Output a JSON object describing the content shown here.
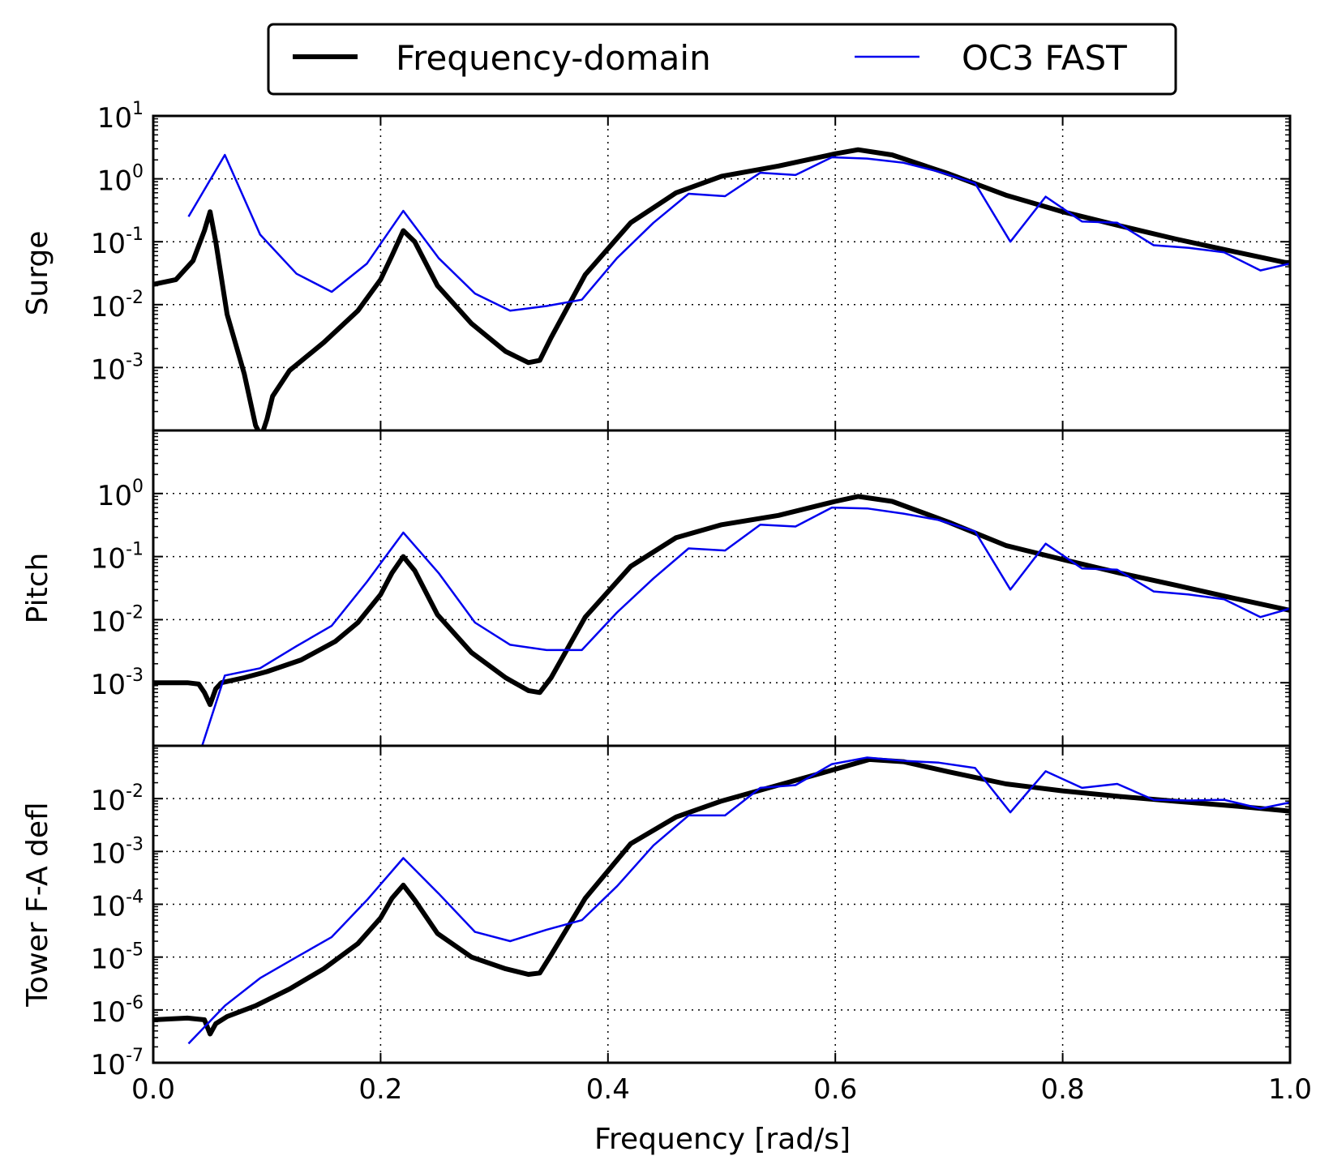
{
  "chart_data": [
    {
      "type": "line",
      "ylabel": "Surge",
      "yscale": "log",
      "ylim_exp": [
        -4,
        1
      ],
      "ytick_exponents": [
        1,
        0,
        -1,
        -2,
        -3
      ],
      "xlim": [
        0.0,
        1.0
      ],
      "grid": true,
      "series": [
        {
          "name": "Frequency-domain",
          "color": "#000000",
          "x": [
            0.0,
            0.02,
            0.035,
            0.045,
            0.05,
            0.055,
            0.065,
            0.08,
            0.09,
            0.095,
            0.1,
            0.105,
            0.12,
            0.15,
            0.18,
            0.2,
            0.21,
            0.22,
            0.23,
            0.25,
            0.28,
            0.31,
            0.33,
            0.34,
            0.35,
            0.38,
            0.42,
            0.46,
            0.5,
            0.55,
            0.6,
            0.62,
            0.65,
            0.7,
            0.75,
            0.8,
            0.85,
            0.9,
            0.95,
            1.0
          ],
          "y": [
            0.021,
            0.025,
            0.05,
            0.15,
            0.3,
            0.1,
            0.007,
            0.0008,
            0.00012,
            8e-05,
            0.00015,
            0.00035,
            0.0009,
            0.0025,
            0.008,
            0.025,
            0.06,
            0.15,
            0.1,
            0.02,
            0.005,
            0.0018,
            0.0012,
            0.0013,
            0.003,
            0.03,
            0.2,
            0.6,
            1.1,
            1.6,
            2.5,
            2.9,
            2.4,
            1.2,
            0.55,
            0.3,
            0.18,
            0.11,
            0.07,
            0.045
          ]
        },
        {
          "name": "OC3 FAST",
          "color": "#0000ee",
          "x": [
            0.031,
            0.063,
            0.094,
            0.126,
            0.157,
            0.188,
            0.22,
            0.251,
            0.283,
            0.314,
            0.346,
            0.377,
            0.408,
            0.44,
            0.471,
            0.503,
            0.534,
            0.565,
            0.597,
            0.628,
            0.66,
            0.691,
            0.723,
            0.754,
            0.785,
            0.817,
            0.848,
            0.88,
            0.911,
            0.942,
            0.974,
            1.0
          ],
          "y": [
            0.25,
            2.4,
            0.13,
            0.031,
            0.016,
            0.045,
            0.31,
            0.055,
            0.015,
            0.008,
            0.0095,
            0.012,
            0.055,
            0.2,
            0.58,
            0.53,
            1.25,
            1.15,
            2.2,
            2.1,
            1.8,
            1.3,
            0.85,
            0.1,
            0.52,
            0.21,
            0.2,
            0.088,
            0.08,
            0.068,
            0.035,
            0.045
          ]
        }
      ]
    },
    {
      "type": "line",
      "ylabel": "Pitch",
      "yscale": "log",
      "ylim_exp": [
        -4,
        1
      ],
      "ytick_exponents": [
        0,
        -1,
        -2,
        -3
      ],
      "xlim": [
        0.0,
        1.0
      ],
      "grid": true,
      "series": [
        {
          "name": "Frequency-domain",
          "color": "#000000",
          "x": [
            0.0,
            0.03,
            0.04,
            0.045,
            0.05,
            0.055,
            0.06,
            0.08,
            0.1,
            0.13,
            0.16,
            0.18,
            0.2,
            0.21,
            0.22,
            0.23,
            0.25,
            0.28,
            0.31,
            0.33,
            0.34,
            0.35,
            0.38,
            0.42,
            0.46,
            0.5,
            0.55,
            0.6,
            0.62,
            0.65,
            0.7,
            0.75,
            0.8,
            0.85,
            0.9,
            0.95,
            1.0
          ],
          "y": [
            0.001,
            0.001,
            0.00095,
            0.0007,
            0.00045,
            0.0008,
            0.001,
            0.0012,
            0.0015,
            0.0023,
            0.0045,
            0.009,
            0.025,
            0.055,
            0.1,
            0.06,
            0.012,
            0.003,
            0.0012,
            0.00075,
            0.0007,
            0.0012,
            0.011,
            0.07,
            0.2,
            0.32,
            0.45,
            0.75,
            0.9,
            0.75,
            0.35,
            0.15,
            0.09,
            0.055,
            0.035,
            0.022,
            0.014
          ]
        },
        {
          "name": "OC3 FAST",
          "color": "#0000ee",
          "x": [
            0.031,
            0.043,
            0.063,
            0.094,
            0.126,
            0.157,
            0.188,
            0.22,
            0.251,
            0.283,
            0.314,
            0.346,
            0.377,
            0.408,
            0.44,
            0.471,
            0.503,
            0.534,
            0.565,
            0.597,
            0.628,
            0.66,
            0.691,
            0.723,
            0.754,
            0.785,
            0.817,
            0.848,
            0.88,
            0.911,
            0.942,
            0.974,
            1.0
          ],
          "y": [
            1e-05,
            0.0001,
            0.0013,
            0.0017,
            0.0038,
            0.008,
            0.04,
            0.24,
            0.055,
            0.009,
            0.004,
            0.0033,
            0.0033,
            0.013,
            0.045,
            0.135,
            0.125,
            0.32,
            0.3,
            0.6,
            0.58,
            0.48,
            0.38,
            0.25,
            0.03,
            0.16,
            0.065,
            0.062,
            0.028,
            0.025,
            0.021,
            0.011,
            0.015
          ]
        }
      ]
    },
    {
      "type": "line",
      "ylabel": "Tower F-A defl",
      "yscale": "log",
      "ylim_exp": [
        -7,
        -1
      ],
      "ytick_exponents": [
        -2,
        -3,
        -4,
        -5,
        -6,
        -7
      ],
      "xlim": [
        0.0,
        1.0
      ],
      "xlabel": "Frequency [rad/s]",
      "xticks": [
        "0.0",
        "0.2",
        "0.4",
        "0.6",
        "0.8",
        "1.0"
      ],
      "grid": true,
      "series": [
        {
          "name": "Frequency-domain",
          "color": "#000000",
          "x": [
            0.0,
            0.03,
            0.045,
            0.05,
            0.055,
            0.065,
            0.09,
            0.12,
            0.15,
            0.18,
            0.2,
            0.21,
            0.22,
            0.23,
            0.25,
            0.28,
            0.31,
            0.33,
            0.34,
            0.35,
            0.38,
            0.42,
            0.46,
            0.5,
            0.55,
            0.6,
            0.63,
            0.66,
            0.7,
            0.75,
            0.8,
            0.85,
            0.9,
            0.95,
            1.0
          ],
          "y": [
            6.5e-07,
            7e-07,
            6.5e-07,
            3.5e-07,
            5.5e-07,
            7.5e-07,
            1.2e-06,
            2.5e-06,
            6e-06,
            1.8e-05,
            5.5e-05,
            0.00013,
            0.00023,
            0.00012,
            2.8e-05,
            1e-05,
            6e-06,
            4.7e-06,
            5e-06,
            1.1e-05,
            0.00013,
            0.0014,
            0.0045,
            0.009,
            0.018,
            0.036,
            0.055,
            0.05,
            0.032,
            0.019,
            0.014,
            0.011,
            0.0089,
            0.0073,
            0.0058
          ]
        },
        {
          "name": "OC3 FAST",
          "color": "#0000ee",
          "x": [
            0.031,
            0.063,
            0.094,
            0.126,
            0.157,
            0.188,
            0.22,
            0.251,
            0.283,
            0.314,
            0.346,
            0.377,
            0.408,
            0.44,
            0.471,
            0.503,
            0.534,
            0.565,
            0.597,
            0.628,
            0.66,
            0.691,
            0.723,
            0.754,
            0.785,
            0.817,
            0.848,
            0.88,
            0.911,
            0.942,
            0.974,
            1.0
          ],
          "y": [
            2.3e-07,
            1.2e-06,
            4e-06,
            1e-05,
            2.4e-05,
            0.00012,
            0.00075,
            0.00016,
            3e-05,
            2e-05,
            3.3e-05,
            5e-05,
            0.00022,
            0.0013,
            0.0048,
            0.0048,
            0.016,
            0.018,
            0.045,
            0.06,
            0.052,
            0.048,
            0.038,
            0.0055,
            0.033,
            0.016,
            0.019,
            0.0095,
            0.0092,
            0.0095,
            0.0065,
            0.0085
          ]
        }
      ]
    }
  ],
  "legend": {
    "placement": "top-center",
    "entries": [
      {
        "label": "Frequency-domain",
        "color": "#000000"
      },
      {
        "label": "OC3 FAST",
        "color": "#0000ee"
      }
    ]
  }
}
